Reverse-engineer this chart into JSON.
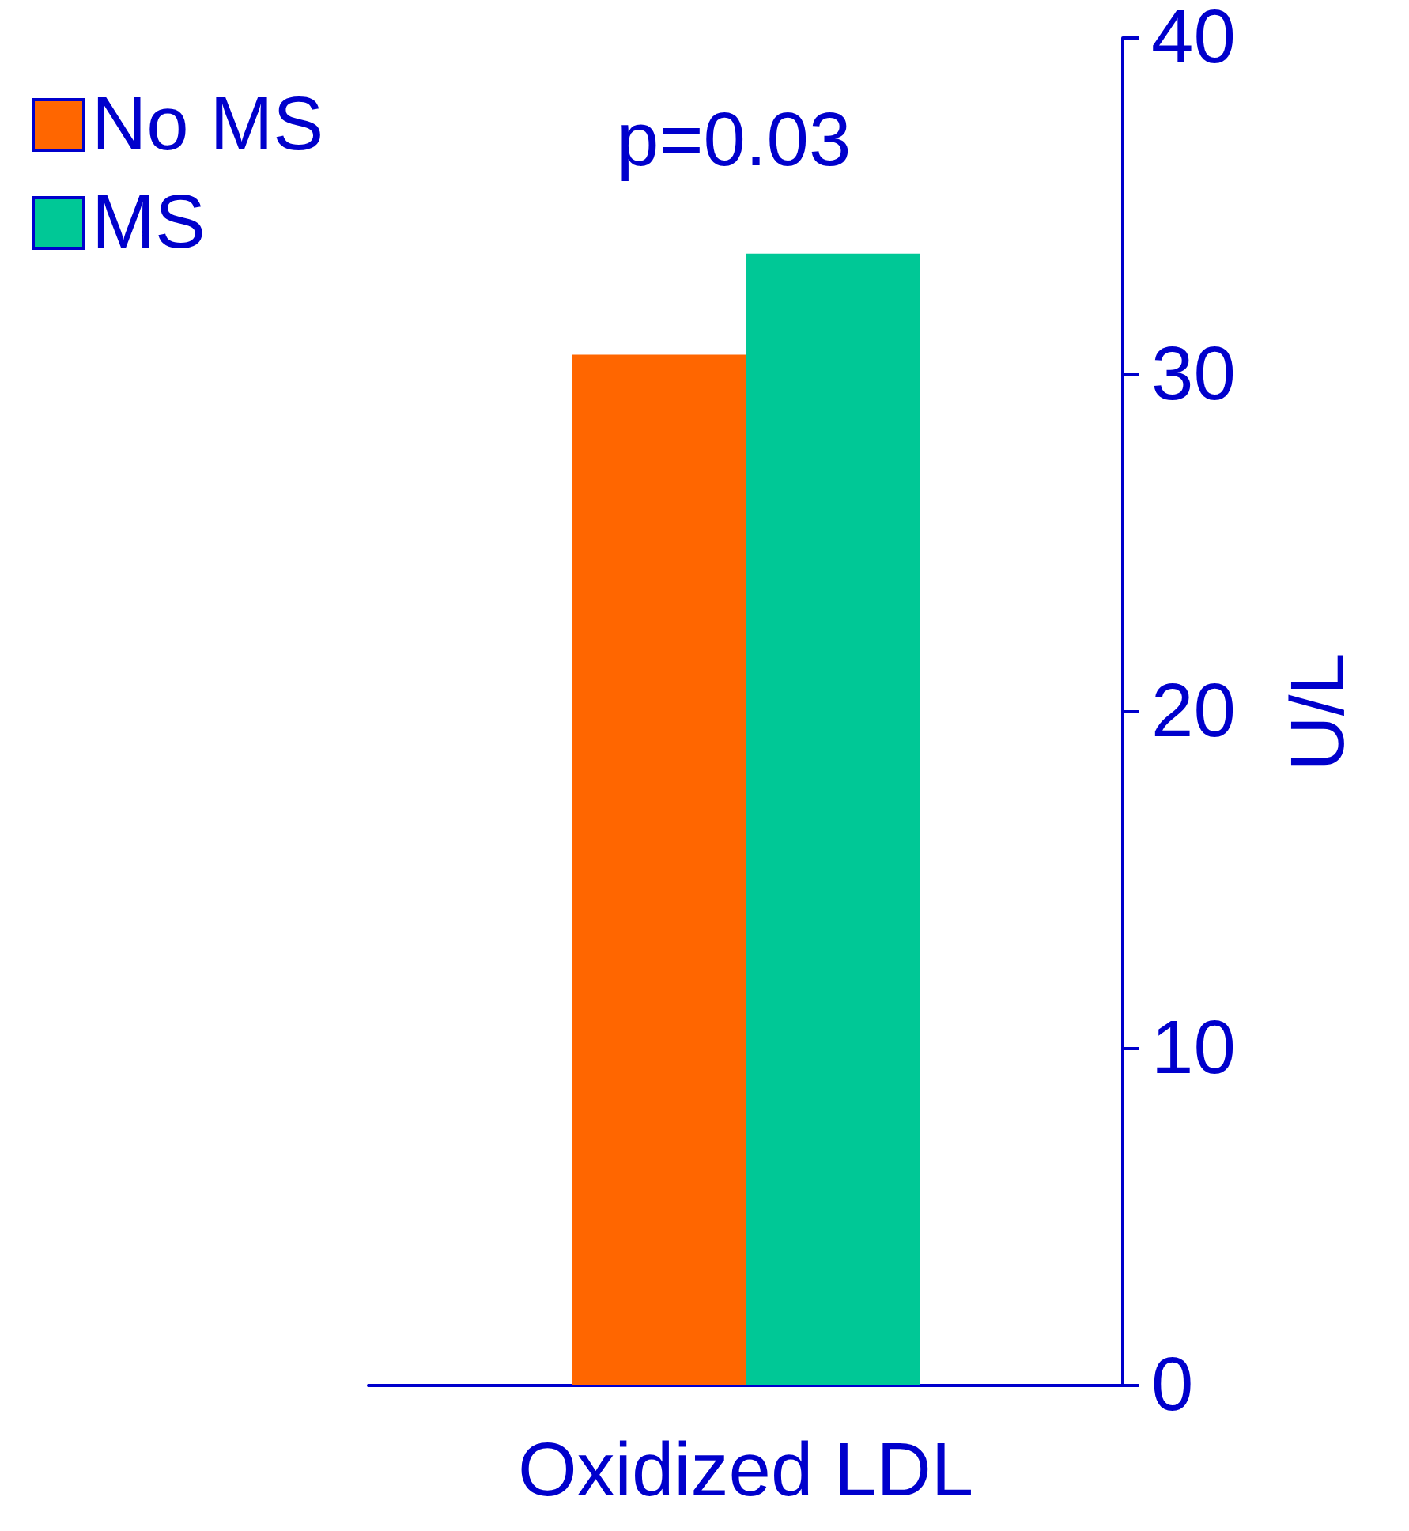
{
  "chart_data": {
    "type": "bar",
    "categories": [
      "Oxidized LDL"
    ],
    "series": [
      {
        "name": "No MS",
        "color": "#ff6600",
        "values": [
          30.6
        ]
      },
      {
        "name": "MS",
        "color": "#00c896",
        "values": [
          33.6
        ]
      }
    ],
    "ylabel": "U/L",
    "ylim": [
      0,
      40
    ],
    "yticks": [
      0,
      10,
      20,
      30,
      40
    ],
    "annotations": [
      "p=0.03"
    ],
    "legend": "top left",
    "grid": false
  }
}
